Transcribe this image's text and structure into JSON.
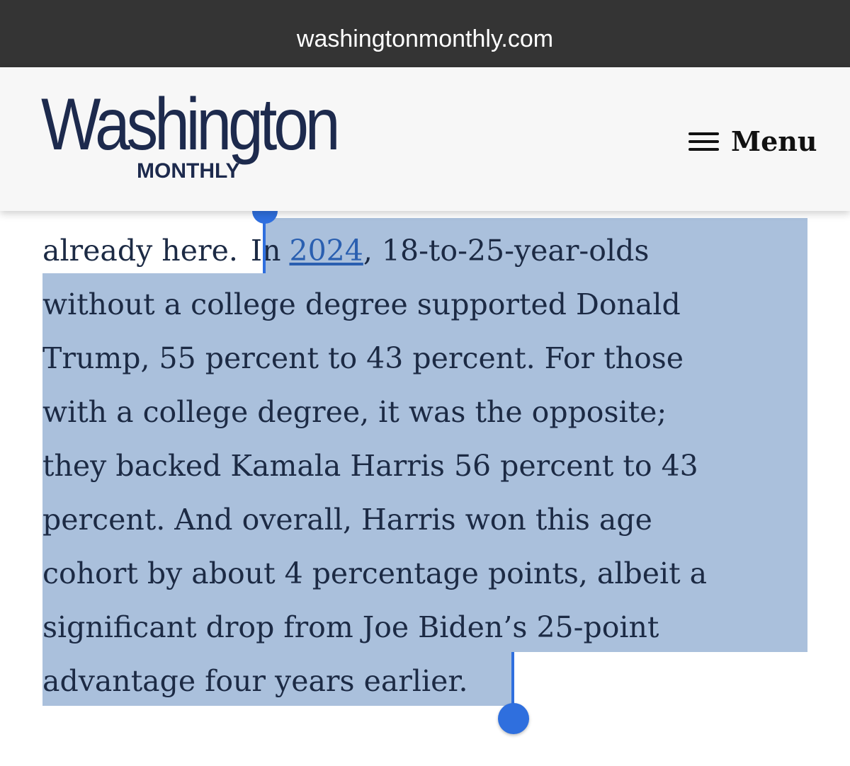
{
  "browser": {
    "url": "washingtonmonthly.com"
  },
  "header": {
    "logo": "Washington",
    "logo_sub": "MONTHLY",
    "menu": "Menu"
  },
  "article": {
    "unselected": "already here.",
    "selected_start": "In",
    "link": "2024",
    "first_line_rest": ", 18-to-25-year-olds",
    "lines": [
      "without a college degree supported Donald",
      "Trump, 55 percent to 43 percent. For those",
      "with a college degree, it was the opposite;",
      "they backed Kamala Harris 56 percent to 43",
      "percent. And overall, Harris won this age",
      "cohort by about 4 percentage points, albeit a",
      "significant drop from Joe Biden’s 25-point",
      "advantage four years earlier."
    ]
  }
}
